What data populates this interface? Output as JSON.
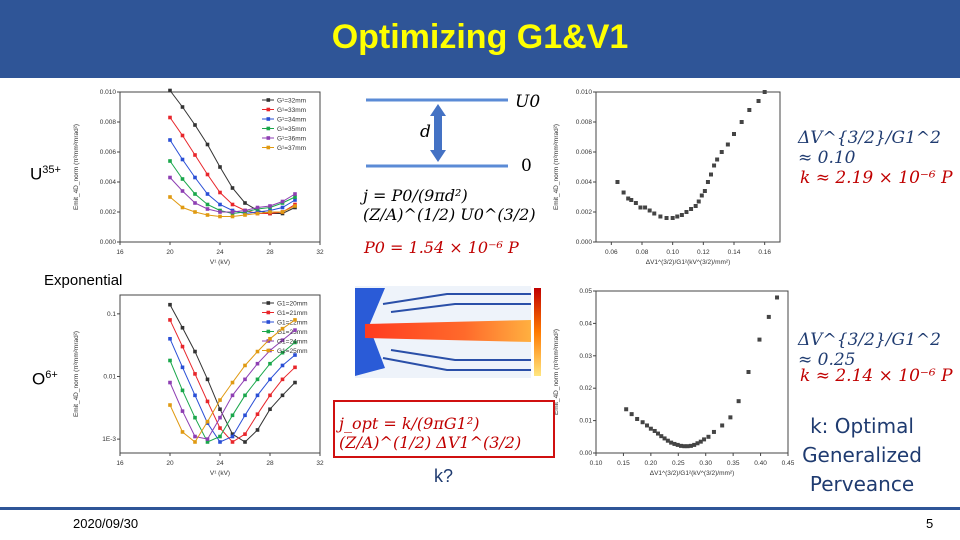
{
  "slide": {
    "title": "Optimizing G1&V1",
    "date": "2020/09/30",
    "page": "5",
    "exponential_label": "Exponential",
    "k_question": "k?",
    "k_definition": "k: Optimal Generalized Perveance",
    "colors": {
      "header": "#2f5597",
      "title": "#ffff00",
      "equation_red": "#c00000",
      "equation_blue": "#1f3b70"
    }
  },
  "ions": {
    "u": {
      "base": "U",
      "charge": "35+"
    },
    "o": {
      "base": "O",
      "charge": "6+"
    }
  },
  "diagram": {
    "top_plate_label": "U0",
    "bottom_plate_label": "0",
    "gap_label": "d",
    "child_law": "j = P0/(9πd²)(Z/A)^(1/2) U0^(3/2)",
    "perveance": "P0 = 1.54 × 10⁻⁶ P",
    "optimal_current": "j_opt = k/(9πG1²)(Z/A)^(1/2) ΔV1^(3/2)"
  },
  "results": {
    "u": {
      "ratio": "ΔV^{3/2}/G1^2 ≈ 0.10",
      "k": "k ≈ 2.19 × 10⁻⁶ P"
    },
    "o": {
      "ratio": "ΔV^{3/2}/G1^2 ≈ 0.25",
      "k": "k ≈ 2.14 × 10⁻⁶ P"
    }
  },
  "chart_data": [
    {
      "type": "line",
      "name": "U35+ emittance vs V1",
      "xlabel": "V¹ (kV)",
      "ylabel": "Emit_4D_norm (π²mm²mrad²)",
      "xlim": [
        16,
        32
      ],
      "ylim": [
        0,
        0.01
      ],
      "xticks": [
        "16",
        "20",
        "24",
        "28",
        "32"
      ],
      "yticks": [
        "0.000",
        "0.002",
        "0.004",
        "0.006",
        "0.008",
        "0.010"
      ],
      "x": [
        20,
        21,
        22,
        23,
        24,
        25,
        26,
        27,
        28,
        29,
        30
      ],
      "series": [
        {
          "name": "G¹=32mm",
          "color": "#333333",
          "values": [
            0.0101,
            0.009,
            0.0078,
            0.0065,
            0.005,
            0.0036,
            0.0026,
            0.0021,
            0.0019,
            0.0019,
            0.0023
          ]
        },
        {
          "name": "G¹=33mm",
          "color": "#e8262b",
          "values": [
            0.0083,
            0.0071,
            0.0058,
            0.0045,
            0.0033,
            0.0025,
            0.0021,
            0.0019,
            0.0019,
            0.002,
            0.0025
          ]
        },
        {
          "name": "G¹=34mm",
          "color": "#2a4fd6",
          "values": [
            0.0068,
            0.0055,
            0.0043,
            0.0032,
            0.0025,
            0.0021,
            0.0019,
            0.002,
            0.0021,
            0.0023,
            0.0028
          ]
        },
        {
          "name": "G¹=35mm",
          "color": "#1aa74b",
          "values": [
            0.0054,
            0.0042,
            0.0032,
            0.0025,
            0.0021,
            0.0019,
            0.002,
            0.0022,
            0.0023,
            0.0026,
            0.003
          ]
        },
        {
          "name": "G¹=36mm",
          "color": "#8e3fb3",
          "values": [
            0.0043,
            0.0034,
            0.0026,
            0.0022,
            0.002,
            0.002,
            0.0021,
            0.0023,
            0.0024,
            0.0027,
            0.0032
          ]
        },
        {
          "name": "G¹=37mm",
          "color": "#e09a12",
          "values": [
            0.003,
            0.0023,
            0.002,
            0.0018,
            0.0017,
            0.0017,
            0.0018,
            0.0019,
            0.002,
            0.002,
            0.0024
          ]
        }
      ]
    },
    {
      "type": "scatter",
      "name": "U35+ emittance vs ΔV1^3/2/G1^2",
      "xlabel": "ΔV1^(3/2)/G1²(kV^(3/2)/mm²)",
      "ylabel": "Emit_4D_norm (π²mm²mrad²)",
      "xlim": [
        0.05,
        0.17
      ],
      "ylim": [
        0,
        0.01
      ],
      "xticks": [
        "0.06",
        "0.08",
        "0.10",
        "0.12",
        "0.14",
        "0.16"
      ],
      "yticks": [
        "0.000",
        "0.002",
        "0.004",
        "0.006",
        "0.008",
        "0.010"
      ],
      "x": [
        0.064,
        0.068,
        0.071,
        0.073,
        0.076,
        0.079,
        0.082,
        0.085,
        0.088,
        0.092,
        0.096,
        0.1,
        0.103,
        0.106,
        0.109,
        0.112,
        0.115,
        0.117,
        0.119,
        0.121,
        0.123,
        0.125,
        0.127,
        0.129,
        0.132,
        0.136,
        0.14,
        0.145,
        0.15,
        0.156,
        0.16
      ],
      "y": [
        0.004,
        0.0033,
        0.0029,
        0.0028,
        0.0026,
        0.0023,
        0.0023,
        0.0021,
        0.0019,
        0.0017,
        0.0016,
        0.0016,
        0.0017,
        0.0018,
        0.002,
        0.0022,
        0.0024,
        0.0027,
        0.0031,
        0.0034,
        0.004,
        0.0045,
        0.0051,
        0.0055,
        0.006,
        0.0065,
        0.0072,
        0.008,
        0.0088,
        0.0094,
        0.01
      ]
    },
    {
      "type": "line",
      "name": "O6+ emittance vs V1",
      "xlabel": "V¹ (kV)",
      "ylabel": "Emit_4D_norm (π²mm²mrad²)",
      "yscale": "log",
      "xlim": [
        16,
        32
      ],
      "ylim": [
        0.0006,
        0.2
      ],
      "xticks": [
        "16",
        "20",
        "24",
        "28",
        "32"
      ],
      "yticks": [
        "1E-3",
        "0.01",
        "0.1"
      ],
      "x": [
        20,
        21,
        22,
        23,
        24,
        25,
        26,
        27,
        28,
        29,
        30
      ],
      "series": [
        {
          "name": "G1=20mm",
          "color": "#333333",
          "values": [
            0.14,
            0.06,
            0.025,
            0.009,
            0.003,
            0.0012,
            0.0009,
            0.0014,
            0.003,
            0.005,
            0.008
          ]
        },
        {
          "name": "G1=21mm",
          "color": "#e8262b",
          "values": [
            0.08,
            0.03,
            0.011,
            0.004,
            0.0015,
            0.0009,
            0.0012,
            0.0025,
            0.005,
            0.009,
            0.014
          ]
        },
        {
          "name": "G1=22mm",
          "color": "#2a4fd6",
          "values": [
            0.04,
            0.014,
            0.005,
            0.0018,
            0.0009,
            0.0011,
            0.0024,
            0.005,
            0.009,
            0.015,
            0.022
          ]
        },
        {
          "name": "G1=23mm",
          "color": "#1aa74b",
          "values": [
            0.018,
            0.006,
            0.0022,
            0.0009,
            0.0011,
            0.0024,
            0.005,
            0.009,
            0.016,
            0.024,
            0.035
          ]
        },
        {
          "name": "G1=24mm",
          "color": "#8e3fb3",
          "values": [
            0.008,
            0.0028,
            0.0011,
            0.001,
            0.0022,
            0.005,
            0.009,
            0.016,
            0.026,
            0.038,
            0.055
          ]
        },
        {
          "name": "G1=25mm",
          "color": "#e09a12",
          "values": [
            0.0035,
            0.0013,
            0.0009,
            0.0019,
            0.0042,
            0.008,
            0.015,
            0.025,
            0.04,
            0.058,
            0.08
          ]
        }
      ]
    },
    {
      "type": "scatter",
      "name": "O6+ emittance vs ΔV1^3/2/G1^2",
      "xlabel": "ΔV1^(3/2)/G1²(kV^(3/2)/mm²)",
      "ylabel": "Emit_4D_norm (π²mm²mrad²)",
      "xlim": [
        0.1,
        0.45
      ],
      "ylim": [
        0,
        0.05
      ],
      "xticks": [
        "0.10",
        "0.15",
        "0.20",
        "0.25",
        "0.30",
        "0.35",
        "0.40",
        "0.45"
      ],
      "yticks": [
        "0.00",
        "0.01",
        "0.02",
        "0.03",
        "0.04",
        "0.05"
      ],
      "x": [
        0.155,
        0.165,
        0.175,
        0.185,
        0.193,
        0.2,
        0.207,
        0.213,
        0.219,
        0.225,
        0.231,
        0.237,
        0.243,
        0.249,
        0.255,
        0.261,
        0.267,
        0.273,
        0.279,
        0.285,
        0.291,
        0.297,
        0.305,
        0.315,
        0.33,
        0.345,
        0.36,
        0.378,
        0.398,
        0.415,
        0.43
      ],
      "y": [
        0.0135,
        0.012,
        0.0105,
        0.0095,
        0.0085,
        0.0075,
        0.0068,
        0.006,
        0.0052,
        0.0045,
        0.0038,
        0.0032,
        0.0028,
        0.0025,
        0.0022,
        0.0021,
        0.0021,
        0.0022,
        0.0025,
        0.003,
        0.0035,
        0.0042,
        0.005,
        0.0065,
        0.0085,
        0.011,
        0.016,
        0.025,
        0.035,
        0.042,
        0.048
      ]
    }
  ]
}
